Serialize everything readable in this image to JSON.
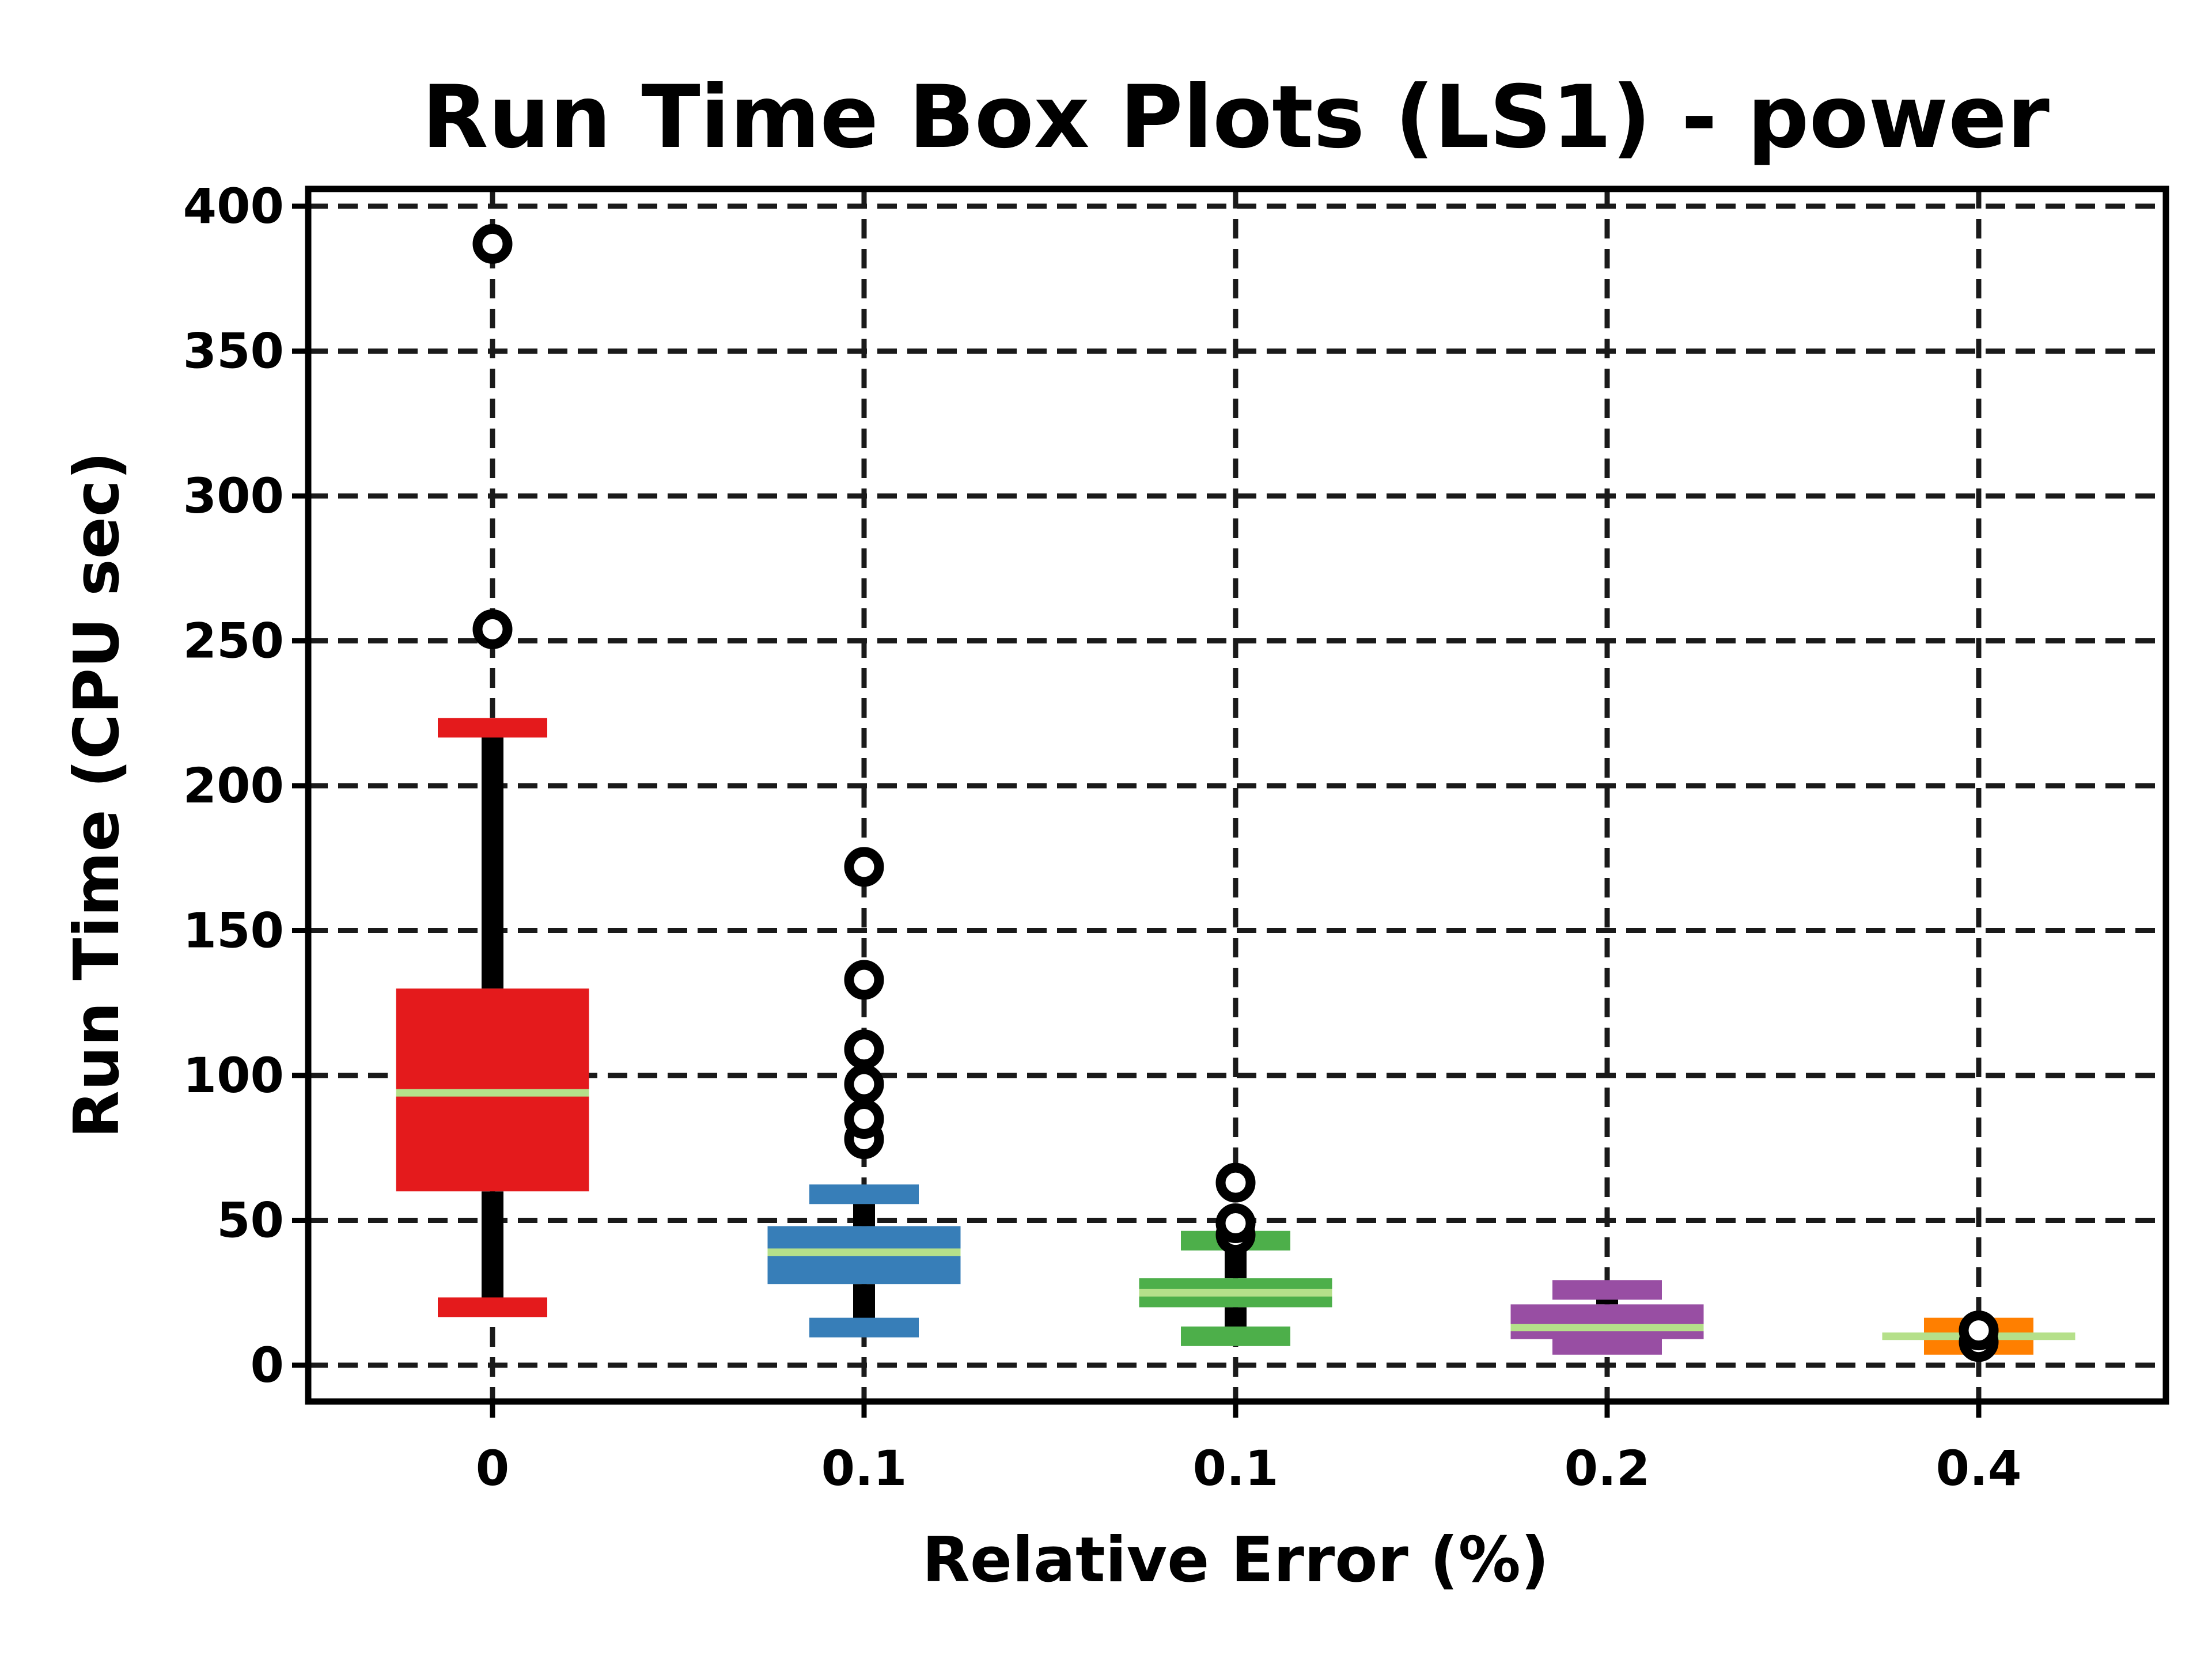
{
  "chart_data": {
    "type": "box",
    "title": "Run Time Box Plots (LS1) - power",
    "xlabel": "Relative Error (%)",
    "ylabel": "Run Time (CPU sec)",
    "ylim": [
      -12,
      406
    ],
    "yticks": [
      0,
      50,
      100,
      150,
      200,
      250,
      300,
      350,
      400
    ],
    "grid": true,
    "grid_style": "dashed",
    "median_color": "#b5e08a",
    "whisker_color": "#000000",
    "categories": [
      "0",
      "0.1",
      "0.1",
      "0.2",
      "0.4"
    ],
    "boxes": [
      {
        "category": "0",
        "color": "#e41a1c",
        "whisker_low": 20,
        "q1": 60,
        "median": 94,
        "q3": 130,
        "whisker_high": 220,
        "outliers": [
          254,
          387
        ]
      },
      {
        "category": "0.1",
        "color": "#377eb8",
        "whisker_low": 13,
        "q1": 28,
        "median": 39,
        "q3": 48,
        "whisker_high": 59,
        "outliers": [
          78,
          85,
          97,
          109,
          133,
          172
        ]
      },
      {
        "category": "0.1",
        "color": "#4daf4a",
        "whisker_low": 10,
        "q1": 20,
        "median": 25,
        "q3": 30,
        "whisker_high": 43,
        "outliers": [
          45,
          49,
          63
        ]
      },
      {
        "category": "0.2",
        "color": "#984ea3",
        "whisker_low": 7,
        "q1": 9,
        "median": 13,
        "q3": 21,
        "whisker_high": 26,
        "outliers": []
      },
      {
        "category": "0.4",
        "color": "#ff7f00",
        "whisker_low": 7,
        "q1": 9,
        "median": 10,
        "q3": 11,
        "whisker_high": 13,
        "outliers": [
          8,
          12
        ]
      }
    ]
  }
}
